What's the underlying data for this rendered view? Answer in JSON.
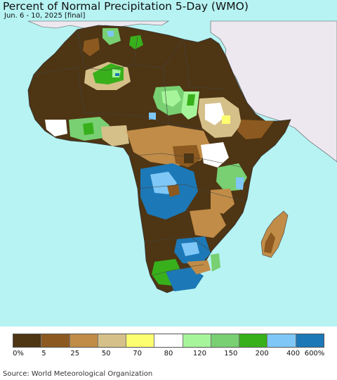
{
  "header": {
    "title": "Percent of Normal Precipitation 5-Day (WMO)",
    "subtitle": "Jun. 6 - 10, 2025 [final]"
  },
  "colors": {
    "ocean": "#b7f3f3",
    "outside_region": "#ede8ef",
    "border": "#444444"
  },
  "legend": {
    "swatches": [
      {
        "color": "#4e3514"
      },
      {
        "color": "#8c5a20"
      },
      {
        "color": "#c08c47"
      },
      {
        "color": "#d6c08a"
      },
      {
        "color": "#fdfd70"
      },
      {
        "color": "#ffffff"
      },
      {
        "color": "#a6f59a"
      },
      {
        "color": "#78d072"
      },
      {
        "color": "#38b01c"
      },
      {
        "color": "#7ec7f7"
      },
      {
        "color": "#1c78b6"
      }
    ],
    "ticks": [
      "0%",
      "5",
      "25",
      "50",
      "70",
      "80",
      "120",
      "150",
      "200",
      "400",
      "600%"
    ]
  },
  "footer": {
    "source": "Source: World Meteorological Organization"
  }
}
